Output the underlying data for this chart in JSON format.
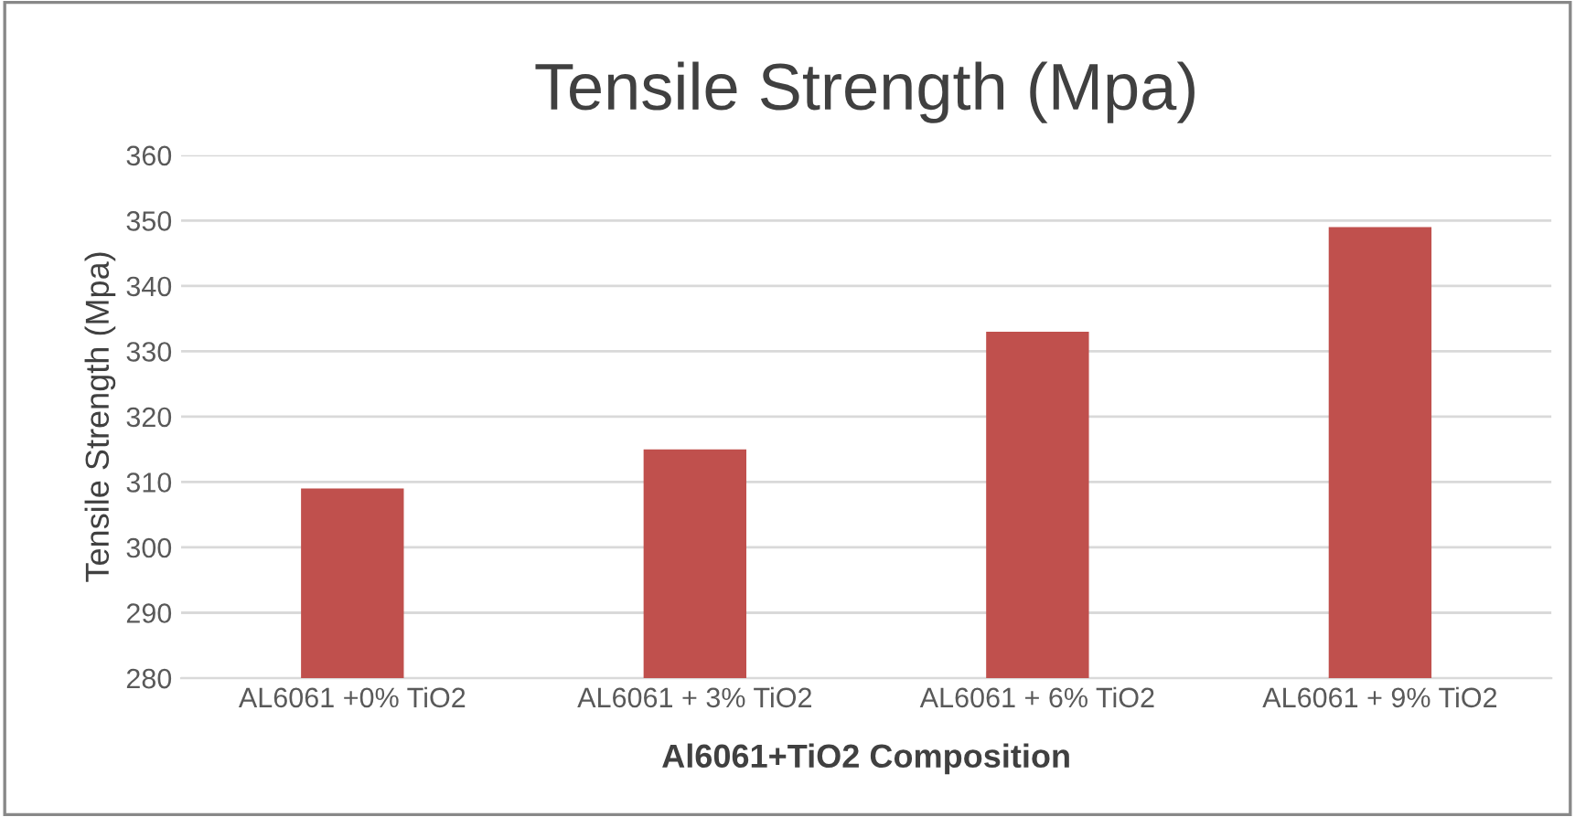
{
  "chart_data": {
    "type": "bar",
    "title": "Tensile Strength (Mpa)",
    "xlabel": "Al6061+TiO2 Composition",
    "ylabel": "Tensile Strength (Mpa)",
    "categories": [
      "AL6061 +0% TiO2",
      "AL6061 + 3% TiO2",
      "AL6061 + 6% TiO2",
      "AL6061 + 9% TiO2"
    ],
    "values": [
      309,
      315,
      333,
      349
    ],
    "color": "#c0504d",
    "ylim": [
      280,
      360
    ],
    "yticks": [
      280,
      290,
      300,
      310,
      320,
      330,
      340,
      350,
      360
    ],
    "grid": "y"
  }
}
